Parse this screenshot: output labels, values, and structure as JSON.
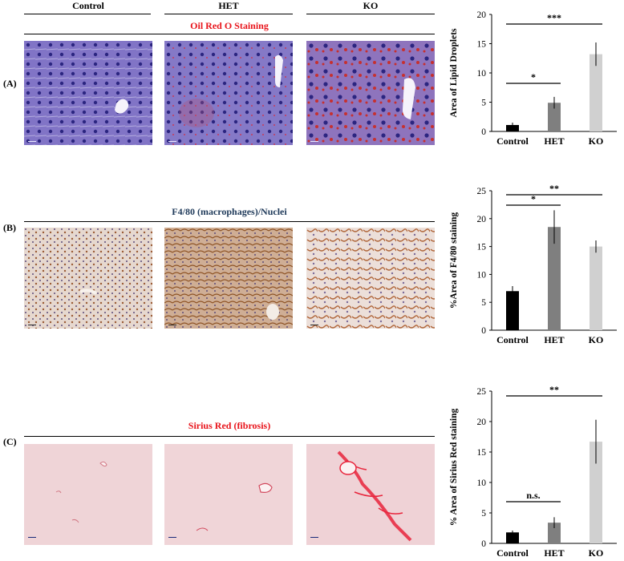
{
  "columns": [
    "Control",
    "HET",
    "KO"
  ],
  "panels": [
    {
      "label": "(A)",
      "title": "Oil Red O Staining",
      "title_color": "#e8141b"
    },
    {
      "label": "(B)",
      "title": "F4/80 (macrophages)/Nuclei",
      "title_color": "#1f3a5a"
    },
    {
      "label": "(C)",
      "title": "Sirius Red (fibrosis)",
      "title_color": "#e8141b"
    }
  ],
  "colors": {
    "control_bar": "#000000",
    "het_bar": "#7f7f7f",
    "ko_bar": "#d0d0d0",
    "oil_red_tissue": "#7b6fc4",
    "f480_tissue": "#e6d8cf",
    "sirius_tissue": "#efd3d6"
  },
  "chart_data": [
    {
      "type": "bar",
      "categories": [
        "Control",
        "HET",
        "KO"
      ],
      "values": [
        1.1,
        4.9,
        13.2
      ],
      "errors": [
        0.4,
        1.0,
        2.0
      ],
      "ylabel": "Area of Lipid Droplets",
      "ylim": [
        0,
        20
      ],
      "yticks": [
        0,
        5,
        10,
        15,
        20
      ],
      "significance": [
        {
          "from": 0,
          "to": 1,
          "label": "*"
        },
        {
          "from": 0,
          "to": 2,
          "label": "***"
        }
      ]
    },
    {
      "type": "bar",
      "categories": [
        "Control",
        "HET",
        "KO"
      ],
      "values": [
        7.0,
        18.5,
        15.0
      ],
      "errors": [
        0.9,
        3.0,
        1.1
      ],
      "ylabel": "%Area of F4/80 staining",
      "ylim": [
        0,
        25
      ],
      "yticks": [
        0,
        5,
        10,
        15,
        20,
        25
      ],
      "significance": [
        {
          "from": 0,
          "to": 1,
          "label": "*"
        },
        {
          "from": 0,
          "to": 2,
          "label": "**"
        }
      ]
    },
    {
      "type": "bar",
      "categories": [
        "Control",
        "HET",
        "KO"
      ],
      "values": [
        1.8,
        3.4,
        16.7
      ],
      "errors": [
        0.3,
        0.9,
        3.6
      ],
      "ylabel": "% Area of Sirius Red staining",
      "ylim": [
        0,
        25
      ],
      "yticks": [
        0,
        5,
        10,
        15,
        20,
        25
      ],
      "significance": [
        {
          "from": 0,
          "to": 1,
          "label": "n.s."
        },
        {
          "from": 0,
          "to": 2,
          "label": "**"
        }
      ]
    }
  ]
}
